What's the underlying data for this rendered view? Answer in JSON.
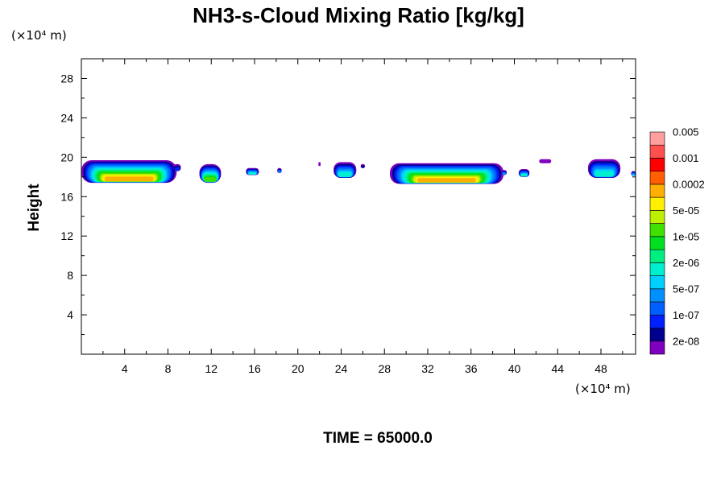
{
  "chart_data": {
    "type": "heatmap",
    "title": "NH3-s-Cloud Mixing Ratio [kg/kg]",
    "ylabel": "Height",
    "x_unit": "(×10⁴ m)",
    "y_unit": "(×10⁴ m)",
    "footer": "TIME = 65000.0",
    "xlim": [
      0,
      51.2
    ],
    "ylim": [
      0,
      30
    ],
    "x_ticks": [
      4,
      8,
      12,
      16,
      20,
      24,
      28,
      32,
      36,
      40,
      44,
      48
    ],
    "y_ticks": [
      4,
      8,
      12,
      16,
      20,
      24,
      28
    ],
    "colorbar": {
      "colors": [
        "#7f00bf",
        "#00008f",
        "#0020ff",
        "#0060ff",
        "#0090ff",
        "#00d0ff",
        "#00efcf",
        "#00ef80",
        "#00e020",
        "#40e000",
        "#bfef00",
        "#ffef00",
        "#ffaf00",
        "#ff5f00",
        "#ff0000",
        "#ff4f4f",
        "#ff9f9f"
      ],
      "labels": [
        "2e-08",
        "1e-07",
        "5e-07",
        "2e-06",
        "1e-05",
        "5e-05",
        "0.0002",
        "0.001",
        "0.005"
      ]
    },
    "cloud_blobs": [
      {
        "x0": 0.0,
        "x1": 8.8,
        "bottom": 17.4,
        "top": 19.7,
        "peak_level": 12
      },
      {
        "x0": 8.5,
        "x1": 9.2,
        "bottom": 18.6,
        "top": 19.3,
        "peak_level": 2
      },
      {
        "x0": 10.9,
        "x1": 12.9,
        "bottom": 17.4,
        "top": 19.3,
        "peak_level": 9
      },
      {
        "x0": 15.2,
        "x1": 16.4,
        "bottom": 18.2,
        "top": 18.9,
        "peak_level": 6
      },
      {
        "x0": 18.1,
        "x1": 18.5,
        "bottom": 18.4,
        "top": 18.9,
        "peak_level": 4
      },
      {
        "x0": 21.9,
        "x1": 22.1,
        "bottom": 19.1,
        "top": 19.5,
        "peak_level": 0
      },
      {
        "x0": 23.3,
        "x1": 25.4,
        "bottom": 17.9,
        "top": 19.5,
        "peak_level": 6
      },
      {
        "x0": 25.8,
        "x1": 26.2,
        "bottom": 18.9,
        "top": 19.3,
        "peak_level": 1
      },
      {
        "x0": 28.5,
        "x1": 39.0,
        "bottom": 17.3,
        "top": 19.4,
        "peak_level": 12
      },
      {
        "x0": 38.8,
        "x1": 39.3,
        "bottom": 18.2,
        "top": 18.7,
        "peak_level": 4
      },
      {
        "x0": 40.4,
        "x1": 41.4,
        "bottom": 18.0,
        "top": 18.8,
        "peak_level": 6
      },
      {
        "x0": 42.3,
        "x1": 43.4,
        "bottom": 19.4,
        "top": 19.8,
        "peak_level": 0
      },
      {
        "x0": 46.8,
        "x1": 49.8,
        "bottom": 17.9,
        "top": 19.8,
        "peak_level": 6
      },
      {
        "x0": 50.8,
        "x1": 51.2,
        "bottom": 18.1,
        "top": 18.6,
        "peak_level": 5
      }
    ]
  }
}
